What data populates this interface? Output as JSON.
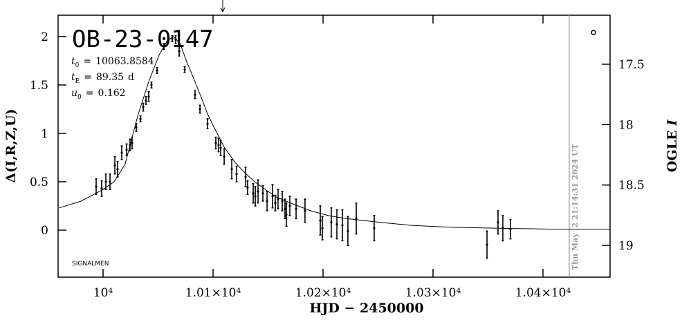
{
  "chart_data": {
    "type": "lightcurve",
    "title": "OB-23-0147",
    "parameters": [
      {
        "symbol": "t",
        "subscript": "0",
        "relation": "=",
        "value": 10063.8584
      },
      {
        "symbol": "t",
        "subscript": "E",
        "relation": "=",
        "value": 89.35,
        "unit": "d"
      },
      {
        "symbol": "u",
        "subscript": "0",
        "relation": "=",
        "value": 0.162
      }
    ],
    "xlabel": "HJD − 2450000",
    "ylabel": "Δ(I,R,Z,U)",
    "y2label": {
      "text": "OGLE",
      "variable": "I"
    },
    "credit": "SIGNALMEN",
    "timestamp": "Thu May  2 21:14:31 2024 UT",
    "timestamp_x": 10423.9,
    "arrow_x": 10108.8,
    "xlim": [
      9959.1,
      10461
    ],
    "ylim": [
      -0.486,
      2.221
    ],
    "y2lim": [
      19.263,
      17.094
    ],
    "xticks": [
      {
        "value": 10000,
        "label": "10⁴"
      },
      {
        "value": 10100,
        "label": "1.01×10⁴"
      },
      {
        "value": 10200,
        "label": "1.02×10⁴"
      },
      {
        "value": 10300,
        "label": "1.03×10⁴"
      },
      {
        "value": 10400,
        "label": "1.04×10⁴"
      }
    ],
    "yticks": [
      0,
      0.5,
      1,
      1.5,
      2
    ],
    "y2ticks": [
      17.5,
      18,
      18.5,
      19
    ],
    "color": "#000000",
    "series": [
      {
        "x": [
          9993.7,
          9998.7,
          10002.5,
          10006.3,
          10010.7,
          10013.2,
          10017.0,
          10021.4,
          10024.5,
          10026.4,
          10030.2,
          10034.0,
          10036.5,
          10039.0,
          10041.5,
          10044.0,
          10049.1,
          10055.3,
          10059.1,
          10062.9,
          10066.0,
          10069.2,
          10074.2,
          10083.6,
          10088.1,
          10095.0,
          10102.5,
          10105.0,
          10106.9,
          10110.1,
          10117.0,
          10121.4,
          10129.6,
          10131.4,
          10136.5,
          10138.4,
          10140.9,
          10145.3,
          10149.1,
          10154.1,
          10156.6,
          10159.1,
          10162.9,
          10165.4,
          10166.7,
          10169.8,
          10175.5,
          10183.6,
          10197.5,
          10199.4,
          10207.5,
          10212.6,
          10217.6,
          10222.6,
          10230.2,
          10246.5,
          10349.1,
          10359.1,
          10363.5,
          10370.4
        ],
        "values": [
          0.45,
          0.43,
          0.5,
          0.5,
          0.67,
          0.63,
          0.8,
          0.83,
          0.88,
          0.9,
          1.06,
          1.15,
          1.27,
          1.34,
          1.38,
          1.5,
          1.65,
          1.9,
          1.96,
          1.98,
          1.97,
          1.85,
          1.66,
          1.4,
          1.25,
          1.1,
          0.9,
          0.88,
          0.85,
          0.76,
          0.63,
          0.58,
          0.55,
          0.44,
          0.38,
          0.35,
          0.4,
          0.38,
          0.3,
          0.35,
          0.28,
          0.32,
          0.3,
          0.22,
          0.16,
          0.25,
          0.22,
          0.2,
          0.1,
          0.02,
          0.08,
          0.06,
          0.05,
          -0.01,
          0.12,
          0.02,
          -0.15,
          0.08,
          0.02,
          0.01
        ],
        "errors": [
          0.08,
          0.08,
          0.08,
          0.08,
          0.09,
          0.08,
          0.07,
          0.06,
          0.06,
          0.06,
          0.04,
          0.03,
          0.04,
          0.04,
          0.05,
          0.03,
          0.03,
          0.03,
          0.03,
          0.03,
          0.04,
          0.05,
          0.03,
          0.04,
          0.04,
          0.05,
          0.06,
          0.07,
          0.08,
          0.08,
          0.1,
          0.08,
          0.1,
          0.07,
          0.1,
          0.1,
          0.12,
          0.08,
          0.1,
          0.12,
          0.08,
          0.1,
          0.1,
          0.1,
          0.12,
          0.1,
          0.1,
          0.12,
          0.15,
          0.12,
          0.15,
          0.15,
          0.16,
          0.15,
          0.16,
          0.13,
          0.14,
          0.12,
          0.13,
          0.1
        ]
      }
    ],
    "model": {
      "x": [
        9960,
        9980,
        10000,
        10010,
        10020,
        10032,
        10042,
        10051,
        10058,
        10063.9,
        10070,
        10076,
        10083,
        10089,
        10095,
        10101,
        10110,
        10120,
        10130,
        10139,
        10150,
        10158,
        10175,
        10189,
        10205,
        10221,
        10252,
        10280,
        10315,
        10360,
        10409,
        10461
      ],
      "values": [
        0.23,
        0.3,
        0.42,
        0.5,
        0.68,
        1.2,
        1.55,
        1.81,
        1.95,
        2.0,
        1.93,
        1.74,
        1.55,
        1.38,
        1.2,
        1.06,
        0.86,
        0.7,
        0.58,
        0.49,
        0.4,
        0.34,
        0.26,
        0.2,
        0.15,
        0.12,
        0.08,
        0.05,
        0.03,
        0.02,
        0.01,
        0.01
      ]
    }
  }
}
